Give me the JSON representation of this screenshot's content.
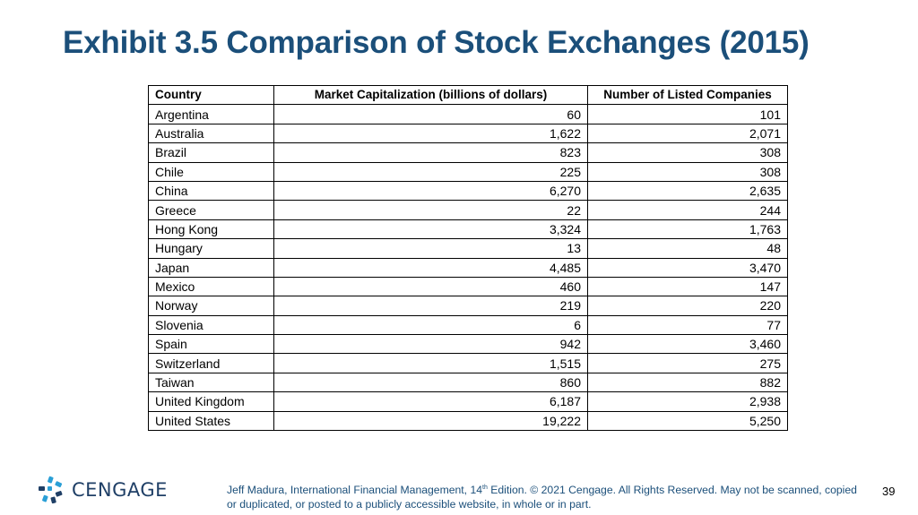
{
  "slide": {
    "title": "Exhibit 3.5 Comparison of Stock Exchanges (2015)",
    "page_number": "39"
  },
  "table": {
    "headers": [
      "Country",
      "Market Capitalization (billions of dollars)",
      "Number of Listed Companies"
    ],
    "rows": [
      [
        "Argentina",
        "60",
        "101"
      ],
      [
        "Australia",
        "1,622",
        "2,071"
      ],
      [
        "Brazil",
        "823",
        "308"
      ],
      [
        "Chile",
        "225",
        "308"
      ],
      [
        "China",
        "6,270",
        "2,635"
      ],
      [
        "Greece",
        "22",
        "244"
      ],
      [
        "Hong Kong",
        "3,324",
        "1,763"
      ],
      [
        "Hungary",
        "13",
        "48"
      ],
      [
        "Japan",
        "4,485",
        "3,470"
      ],
      [
        "Mexico",
        "460",
        "147"
      ],
      [
        "Norway",
        "219",
        "220"
      ],
      [
        "Slovenia",
        "6",
        "77"
      ],
      [
        "Spain",
        "942",
        "3,460"
      ],
      [
        "Switzerland",
        "1,515",
        "275"
      ],
      [
        "Taiwan",
        "860",
        "882"
      ],
      [
        "United Kingdom",
        "6,187",
        "2,938"
      ],
      [
        "United States",
        "19,222",
        "5,250"
      ]
    ]
  },
  "footer": {
    "logo_text": "CENGAGE",
    "citation_prefix": "Jeff Madura, International Financial Management, 14",
    "citation_sup": "th",
    "citation_suffix": " Edition. © 2021 Cengage. All Rights Reserved. May not be scanned, copied or duplicated, or posted to a publicly accessible website, in whole or in part."
  },
  "colors": {
    "title": "#1b4f7a",
    "logo_blue": "#2a9fd6",
    "logo_navy": "#1f3f66"
  }
}
